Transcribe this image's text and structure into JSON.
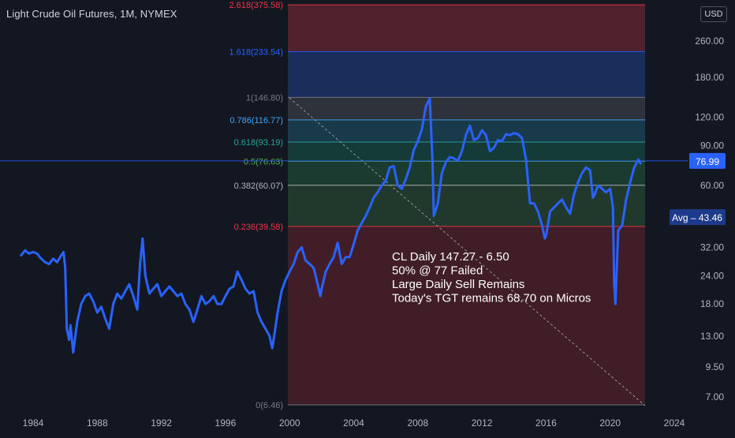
{
  "title": "Light Crude Oil Futures, 1M, NYMEX",
  "currency": "USD",
  "colors": {
    "background": "#131722",
    "line": "#2962ff",
    "text": "#d1d4dc",
    "axis_text": "#b2b5be",
    "last_price_bg": "#2962ff",
    "avg_bg": "#1e3a8a"
  },
  "chart_data": {
    "type": "line",
    "y_scale": "log",
    "x_tick_labels": [
      "1984",
      "1988",
      "1992",
      "1996",
      "2000",
      "2004",
      "2008",
      "2012",
      "2016",
      "2020",
      "2024"
    ],
    "y_tick_labels": [
      "7.00",
      "9.50",
      "13.00",
      "18.00",
      "24.00",
      "32.00",
      "60.00",
      "90.00",
      "120.00",
      "180.00",
      "260.00"
    ],
    "last_price": "76.99",
    "average_label": "Avg – 43.46",
    "series": [
      {
        "x": [
          1983.25,
          1983.5,
          1983.75,
          1984.0,
          1984.25,
          1984.5,
          1984.75,
          1985.0,
          1985.25,
          1985.5,
          1985.75,
          1985.9,
          1986.0,
          1986.1,
          1986.25,
          1986.33,
          1986.5,
          1986.75,
          1987.0,
          1987.25,
          1987.5,
          1987.75,
          1988.0,
          1988.25,
          1988.5,
          1988.75,
          1989.0,
          1989.25,
          1989.5,
          1989.75,
          1990.0,
          1990.25,
          1990.5,
          1990.67,
          1990.83,
          1991.0,
          1991.25,
          1991.5,
          1991.75,
          1992.0,
          1992.25,
          1992.5,
          1992.75,
          1993.0,
          1993.25,
          1993.5,
          1993.75,
          1994.0,
          1994.25,
          1994.5,
          1994.75,
          1995.0,
          1995.25,
          1995.5,
          1995.75,
          1996.0,
          1996.25,
          1996.5,
          1996.75,
          1997.0,
          1997.25,
          1997.5,
          1997.75,
          1998.0,
          1998.25,
          1998.5,
          1998.75,
          1998.92,
          1999.0,
          1999.25,
          1999.5,
          1999.75,
          2000.0,
          2000.25,
          2000.5,
          2000.75,
          2001.0,
          2001.25,
          2001.5,
          2001.75,
          2001.92,
          2002.0,
          2002.25,
          2002.5,
          2002.75,
          2003.0,
          2003.25,
          2003.5,
          2003.75,
          2004.0,
          2004.25,
          2004.5,
          2004.75,
          2005.0,
          2005.25,
          2005.5,
          2005.75,
          2006.0,
          2006.25,
          2006.5,
          2006.75,
          2007.0,
          2007.25,
          2007.5,
          2007.75,
          2008.0,
          2008.25,
          2008.5,
          2008.75,
          2008.92,
          2009.0,
          2009.25,
          2009.5,
          2009.75,
          2010.0,
          2010.25,
          2010.5,
          2010.75,
          2011.0,
          2011.25,
          2011.5,
          2011.75,
          2012.0,
          2012.25,
          2012.5,
          2012.75,
          2013.0,
          2013.25,
          2013.5,
          2013.75,
          2014.0,
          2014.25,
          2014.5,
          2014.75,
          2015.0,
          2015.25,
          2015.5,
          2015.75,
          2015.92,
          2016.0,
          2016.25,
          2016.5,
          2016.75,
          2017.0,
          2017.25,
          2017.5,
          2017.75,
          2018.0,
          2018.25,
          2018.5,
          2018.75,
          2018.92,
          2019.0,
          2019.25,
          2019.5,
          2019.75,
          2020.0,
          2020.17,
          2020.25,
          2020.33,
          2020.5,
          2020.75,
          2021.0,
          2021.25,
          2021.5,
          2021.75,
          2021.9
        ],
        "y": [
          29.5,
          31.0,
          30.0,
          30.5,
          30.0,
          28.5,
          27.5,
          27.0,
          28.5,
          27.5,
          29.5,
          30.5,
          26.0,
          14.0,
          12.5,
          14.5,
          11.0,
          15.0,
          18.0,
          19.5,
          20.0,
          18.5,
          16.5,
          17.5,
          15.5,
          14.0,
          18.0,
          20.0,
          19.0,
          20.5,
          22.0,
          19.5,
          17.0,
          27.0,
          35.0,
          24.0,
          20.0,
          21.0,
          22.0,
          19.5,
          20.5,
          21.5,
          20.5,
          19.5,
          20.0,
          18.0,
          17.0,
          15.0,
          17.0,
          19.5,
          18.0,
          18.5,
          19.5,
          18.0,
          18.0,
          19.5,
          21.0,
          21.5,
          25.0,
          23.0,
          21.0,
          20.0,
          20.5,
          16.5,
          15.0,
          14.0,
          13.0,
          11.5,
          12.5,
          16.5,
          20.5,
          23.0,
          25.0,
          27.0,
          30.5,
          32.0,
          28.0,
          27.0,
          26.0,
          22.0,
          19.5,
          21.0,
          25.0,
          27.0,
          29.0,
          33.5,
          27.0,
          29.0,
          29.0,
          33.0,
          38.0,
          41.0,
          44.0,
          48.0,
          53.0,
          56.0,
          60.0,
          63.0,
          72.0,
          73.0,
          60.0,
          58.0,
          64.0,
          72.0,
          86.0,
          94.0,
          106.0,
          134.0,
          145.0,
          75.0,
          44.0,
          50.0,
          68.0,
          76.0,
          80.0,
          79.0,
          77.0,
          85.0,
          100.0,
          110.0,
          95.0,
          97.0,
          105.0,
          100.0,
          85.0,
          88.0,
          95.0,
          94.0,
          101.0,
          100.0,
          102.0,
          101.0,
          97.0,
          78.0,
          50.0,
          50.0,
          46.0,
          40.0,
          35.0,
          36.0,
          46.0,
          48.0,
          50.0,
          52.0,
          48.0,
          45.0,
          55.0,
          62.0,
          68.0,
          72.0,
          70.0,
          53.0,
          54.0,
          60.0,
          58.0,
          56.0,
          58.0,
          48.0,
          22.0,
          18.0,
          38.0,
          40.0,
          52.0,
          62.0,
          72.0,
          78.0,
          75.0
        ]
      }
    ]
  },
  "fib_levels": [
    {
      "ratio": 2.618,
      "price": 375.58,
      "label": "2.618(375.58)",
      "label_color": "#f23645"
    },
    {
      "ratio": 1.618,
      "price": 233.54,
      "label": "1.618(233.54)",
      "label_color": "#2962ff"
    },
    {
      "ratio": 1.0,
      "price": 146.8,
      "label": "1(146.80)",
      "label_color": "#787b86"
    },
    {
      "ratio": 0.786,
      "price": 116.77,
      "label": "0.786(116.77)",
      "label_color": "#42a5f5"
    },
    {
      "ratio": 0.618,
      "price": 93.19,
      "label": "0.618(93.19)",
      "label_color": "#26a69a"
    },
    {
      "ratio": 0.5,
      "price": 76.63,
      "label": "0.5(76.63)",
      "label_color": "#4caf50"
    },
    {
      "ratio": 0.382,
      "price": 60.07,
      "label": "0.382(60.07)",
      "label_color": "#b2b5be"
    },
    {
      "ratio": 0.236,
      "price": 39.58,
      "label": "0.236(39.58)",
      "label_color": "#f23645"
    },
    {
      "ratio": 0,
      "price": 6.46,
      "label": "0(6.46)",
      "label_color": "#787b86"
    }
  ],
  "annotation": {
    "lines": [
      "CL Daily 147.27 - 6.50",
      "50% @ 77 Failed",
      "Large Daily Sell Remains",
      "Today's TGT remains 68.70 on Micros"
    ]
  }
}
